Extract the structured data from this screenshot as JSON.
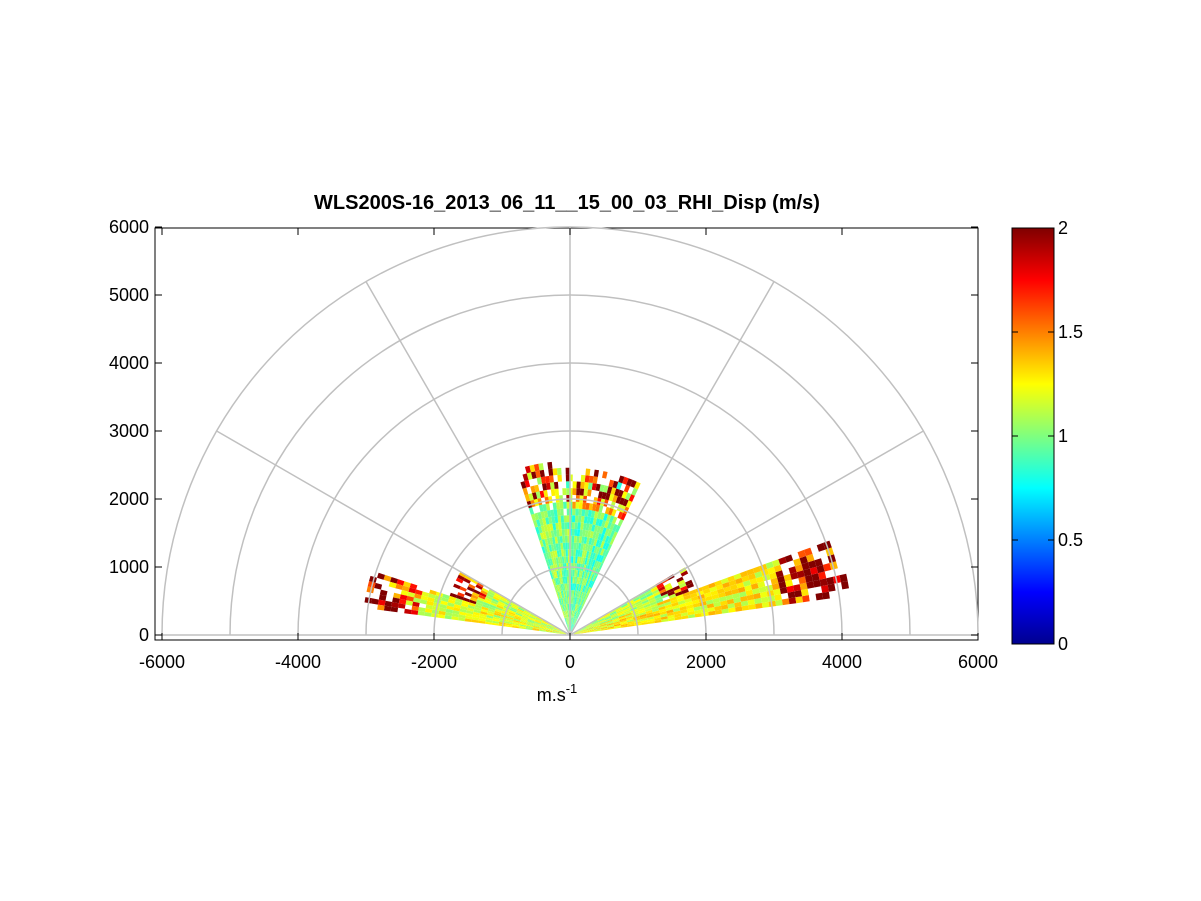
{
  "chart_data": {
    "type": "heatmap",
    "subtype": "polar RHI scan",
    "title": "WLS200S-16_2013_06_11__15_00_03_RHI_Disp (m/s)",
    "xlabel_base": "m.s",
    "xlabel_exp": "-1",
    "ylabel": "",
    "xlim": [
      -6000,
      6000
    ],
    "ylim": [
      0,
      6000
    ],
    "xticks": [
      -6000,
      -4000,
      -2000,
      0,
      2000,
      4000,
      6000
    ],
    "yticks": [
      0,
      1000,
      2000,
      3000,
      4000,
      5000,
      6000
    ],
    "range_rings": [
      1000,
      2000,
      3000,
      4000,
      5000,
      6000
    ],
    "spoke_angles_deg": [
      0,
      30,
      60,
      90,
      120,
      150,
      180
    ],
    "grid_color": "#c0c0c0",
    "colorbar": {
      "colormap": "jet",
      "clim": [
        0,
        2
      ],
      "ticks": [
        0,
        0.5,
        1,
        1.5,
        2
      ]
    },
    "sectors": [
      {
        "angle_from_deg": 8,
        "angle_to_deg": 20,
        "max_range": 4100,
        "typical_value": 1.25
      },
      {
        "angle_from_deg": 20,
        "angle_to_deg": 30,
        "max_range": 1900,
        "typical_value": 1.1
      },
      {
        "angle_from_deg": 65,
        "angle_to_deg": 90,
        "max_range": 2400,
        "typical_value": 0.95
      },
      {
        "angle_from_deg": 90,
        "angle_to_deg": 108,
        "max_range": 2500,
        "typical_value": 1.0
      },
      {
        "angle_from_deg": 150,
        "angle_to_deg": 162,
        "max_range": 1800,
        "typical_value": 1.15
      },
      {
        "angle_from_deg": 162,
        "angle_to_deg": 172,
        "max_range": 3000,
        "typical_value": 1.2
      }
    ]
  }
}
